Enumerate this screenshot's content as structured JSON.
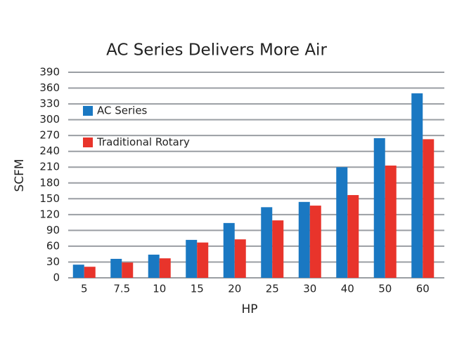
{
  "chart_data": {
    "type": "bar",
    "title": "AC Series Delivers More Air",
    "x_label": "HP",
    "y_label": "SCFM",
    "categories": [
      "5",
      "7.5",
      "10",
      "15",
      "20",
      "25",
      "30",
      "40",
      "50",
      "60"
    ],
    "series": [
      {
        "name": "AC Series",
        "color": "#1a78c2",
        "values": [
          25,
          36,
          44,
          72,
          104,
          134,
          144,
          210,
          265,
          350
        ]
      },
      {
        "name": "Traditional Rotary",
        "color": "#e8342b",
        "values": [
          21,
          29,
          37,
          67,
          73,
          109,
          137,
          157,
          213,
          263
        ]
      }
    ],
    "ylim": [
      0,
      390
    ],
    "yticks": [
      0,
      30,
      60,
      90,
      120,
      150,
      180,
      210,
      240,
      270,
      300,
      330,
      360,
      390
    ],
    "grid": true
  }
}
